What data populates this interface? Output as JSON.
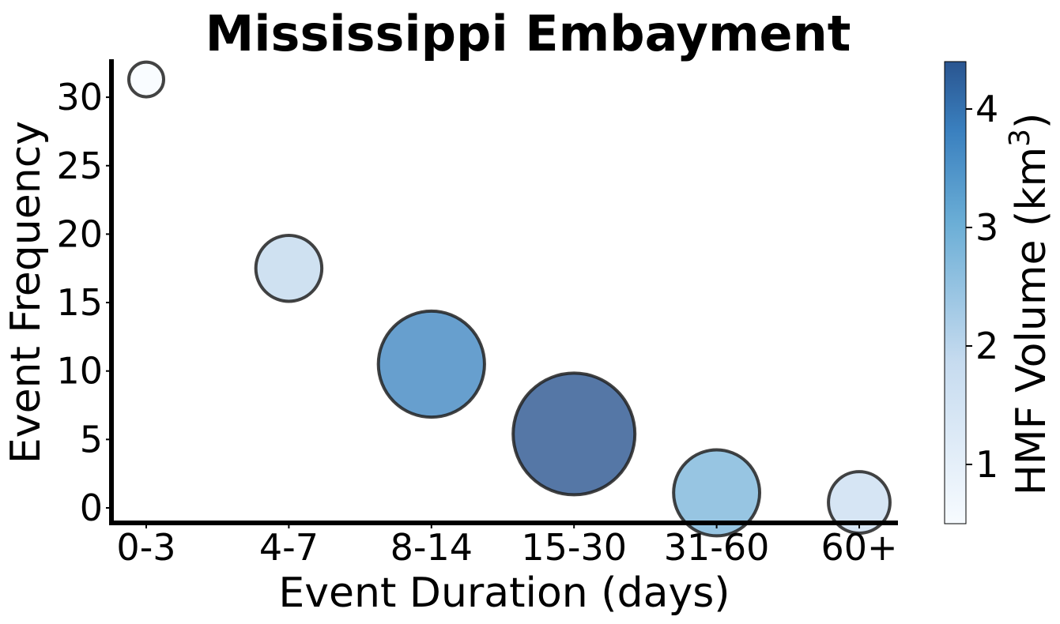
{
  "chart_data": {
    "type": "scatter",
    "title": "Mississippi Embayment",
    "xlabel": "Event Duration (days)",
    "ylabel": "Event Frequency",
    "categories": [
      "0-3",
      "4-7",
      "8-14",
      "15-30",
      "31-60",
      "60+"
    ],
    "frequency": [
      31.3,
      17.5,
      10.5,
      5.4,
      1.1,
      0.4
    ],
    "hmf_volume_km3": [
      0.5,
      1.9,
      3.7,
      4.4,
      2.8,
      1.7
    ],
    "ylim": [
      -1.2,
      32.9
    ],
    "yticks": [
      0,
      5,
      10,
      15,
      20,
      25,
      30
    ],
    "colorbar": {
      "label": "HMF Volume (km",
      "label_sup": "3",
      "label_end": ")",
      "range": [
        0.5,
        4.4
      ],
      "ticks": [
        1,
        2,
        3,
        4
      ],
      "colormap": [
        "#f7fbff",
        "#c6dbef",
        "#6baed6",
        "#2171b5"
      ]
    },
    "marker_color_alpha": 0.8,
    "marker_edge_color": "#222222",
    "grid": false,
    "legend": "none"
  }
}
